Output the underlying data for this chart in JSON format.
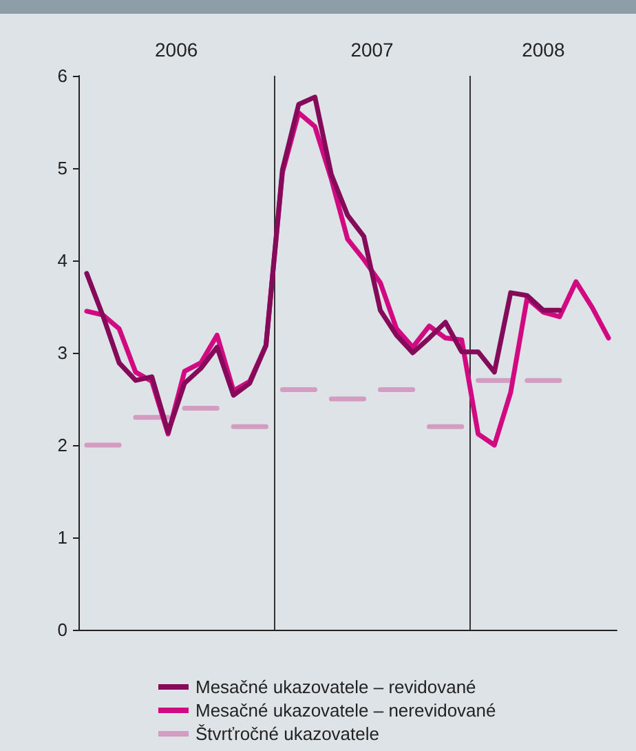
{
  "chart_data": {
    "type": "line",
    "x": [
      2006.042,
      2006.125,
      2006.208,
      2006.292,
      2006.375,
      2006.458,
      2006.542,
      2006.625,
      2006.708,
      2006.792,
      2006.875,
      2006.958,
      2007.042,
      2007.125,
      2007.208,
      2007.292,
      2007.375,
      2007.458,
      2007.542,
      2007.625,
      2007.708,
      2007.792,
      2007.875,
      2007.958,
      2008.042,
      2008.125,
      2008.208,
      2008.292,
      2008.375,
      2008.458,
      2008.542,
      2008.625,
      2008.708
    ],
    "series": [
      {
        "name": "Mesačné ukazovatele – revidované",
        "color": "#850a5a",
        "values": [
          3.86,
          3.4,
          2.89,
          2.7,
          2.74,
          2.14,
          2.67,
          2.83,
          3.06,
          2.54,
          2.67,
          3.08,
          4.98,
          5.69,
          5.77,
          4.93,
          4.49,
          4.26,
          3.46,
          3.19,
          3.0,
          3.16,
          3.33,
          3.01,
          3.01,
          2.79,
          3.65,
          3.62,
          3.46,
          3.46,
          null,
          null,
          null
        ]
      },
      {
        "name": "Mesačné ukazovatele – nerevidované",
        "color": "#d20a82",
        "values": [
          3.45,
          3.41,
          3.26,
          2.79,
          2.69,
          2.12,
          2.8,
          2.89,
          3.19,
          2.59,
          2.69,
          3.08,
          4.95,
          5.6,
          5.45,
          4.88,
          4.23,
          4.01,
          3.76,
          3.26,
          3.06,
          3.29,
          3.16,
          3.14,
          2.12,
          2.0,
          2.57,
          3.59,
          3.44,
          3.39,
          3.77,
          3.49,
          3.16
        ]
      },
      {
        "name": "Štvrťročné ukazovatele",
        "color": "#d59cc2",
        "x": [
          2006.042,
          2006.208,
          2006.25,
          2006.292,
          2006.458,
          2006.5,
          2006.542,
          2006.708,
          2006.75,
          2006.792,
          2006.958,
          2007.0,
          2007.042,
          2007.208,
          2007.25,
          2007.292,
          2007.458,
          2007.5,
          2007.542,
          2007.708,
          2007.75,
          2007.792,
          2007.958,
          2008.0,
          2008.042,
          2008.208,
          2008.25,
          2008.292,
          2008.458
        ],
        "values": [
          2.0,
          2.0,
          null,
          2.3,
          2.3,
          null,
          2.4,
          2.4,
          null,
          2.2,
          2.2,
          null,
          2.6,
          2.6,
          null,
          2.5,
          2.5,
          null,
          2.6,
          2.6,
          null,
          2.2,
          2.2,
          null,
          2.7,
          2.7,
          null,
          2.7,
          2.7
        ]
      }
    ],
    "xlim": [
      2006,
      2008.75
    ],
    "xticks": [
      {
        "value": 2006.5,
        "label": "2006"
      },
      {
        "value": 2007.5,
        "label": "2007"
      },
      {
        "value": 2008.375,
        "label": "2008"
      }
    ],
    "ylim": [
      0,
      6
    ],
    "yticks": [
      0,
      1,
      2,
      3,
      4,
      5,
      6
    ],
    "ref_lines": [
      {
        "axis": "x",
        "value": 2007,
        "color": "#333333"
      },
      {
        "axis": "x",
        "value": 2008,
        "color": "#333333"
      }
    ],
    "legend": "bottom",
    "marker": "none",
    "line_style": "solid"
  }
}
